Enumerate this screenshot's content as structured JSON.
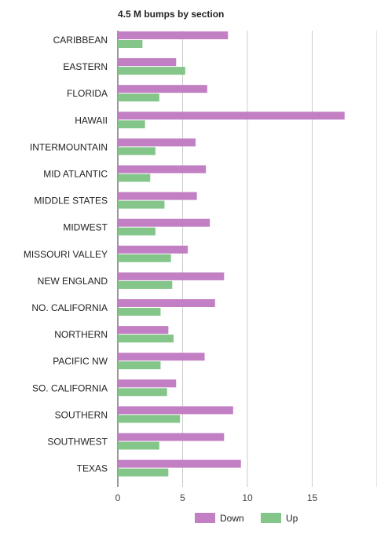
{
  "chart_data": {
    "type": "bar",
    "orientation": "horizontal",
    "title": "4.5 M bumps by section",
    "categories": [
      "CARIBBEAN",
      "EASTERN",
      "FLORIDA",
      "HAWAII",
      "INTERMOUNTAIN",
      "MID ATLANTIC",
      "MIDDLE STATES",
      "MIDWEST",
      "MISSOURI VALLEY",
      "NEW ENGLAND",
      "NO. CALIFORNIA",
      "NORTHERN",
      "PACIFIC NW",
      "SO. CALIFORNIA",
      "SOUTHERN",
      "SOUTHWEST",
      "TEXAS"
    ],
    "series": [
      {
        "name": "Down",
        "color": "#c27fc4",
        "values": [
          8.5,
          4.5,
          6.9,
          17.5,
          6.0,
          6.8,
          6.1,
          7.1,
          5.4,
          8.2,
          7.5,
          3.9,
          6.7,
          4.5,
          8.9,
          8.2,
          9.5
        ]
      },
      {
        "name": "Up",
        "color": "#84c589",
        "values": [
          1.9,
          5.2,
          3.2,
          2.1,
          2.9,
          2.5,
          3.6,
          2.9,
          4.1,
          4.2,
          3.3,
          4.3,
          3.3,
          3.8,
          4.8,
          3.2,
          3.9
        ]
      }
    ],
    "xlim": [
      0,
      20
    ],
    "xticks": [
      0,
      5,
      10,
      15
    ],
    "grid": true,
    "legend_position": "bottom"
  }
}
